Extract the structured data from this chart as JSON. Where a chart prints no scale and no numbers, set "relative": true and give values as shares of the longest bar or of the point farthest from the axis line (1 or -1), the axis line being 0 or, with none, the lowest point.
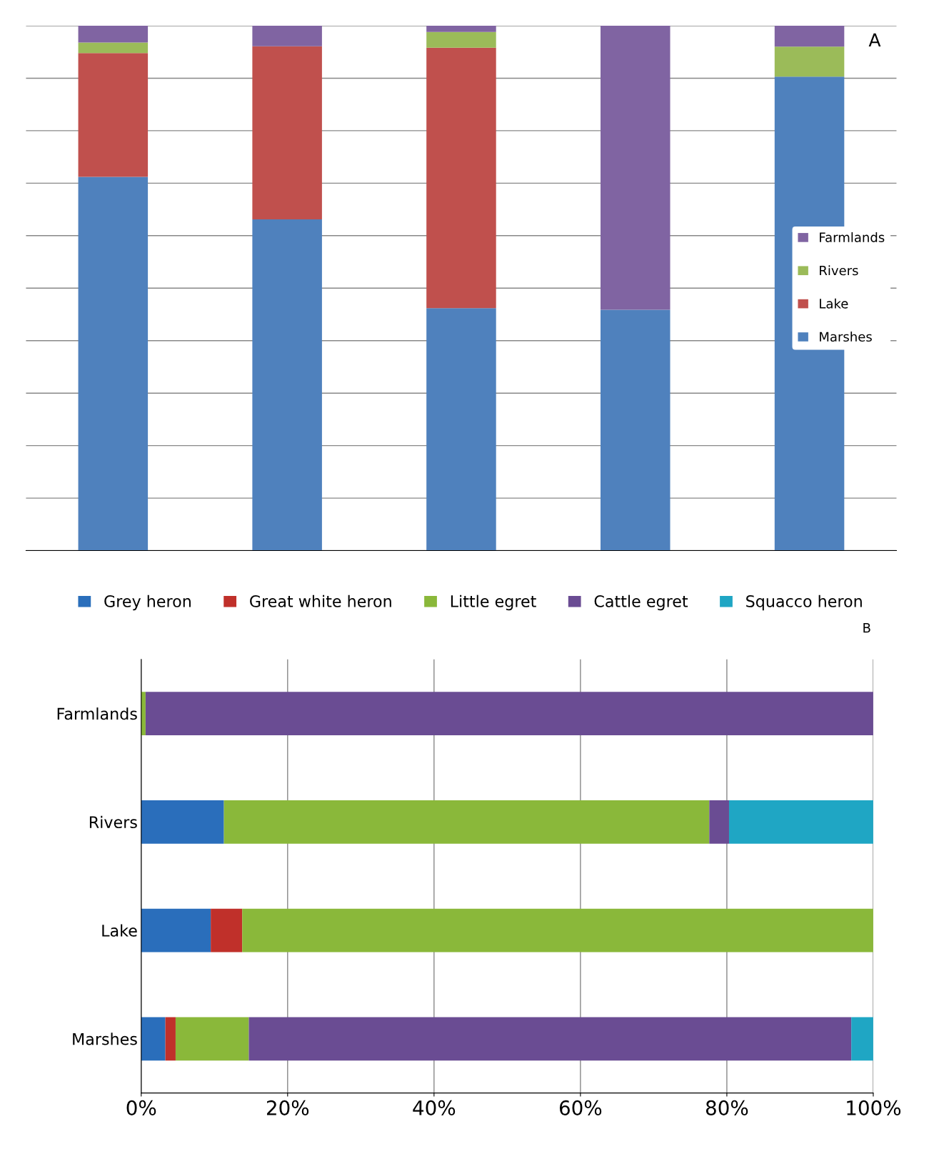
{
  "chart_data": [
    {
      "type": "bar",
      "stacked": true,
      "relative": true,
      "categories": [
        null,
        null,
        null,
        null,
        null
      ],
      "tick_labels": false,
      "grid": "y",
      "legend": "right",
      "series": [
        {
          "name": "Marshes",
          "color": "#4f81bd",
          "values": [
            0.712,
            0.631,
            0.462,
            0.459,
            0.903
          ]
        },
        {
          "name": "Lake",
          "color": "#c0504d",
          "values": [
            0.236,
            0.33,
            0.496,
            0,
            0
          ]
        },
        {
          "name": "Rivers",
          "color": "#9bbb59",
          "values": [
            0.02,
            0,
            0.03,
            0,
            0.057
          ]
        },
        {
          "name": "Farmlands",
          "color": "#8064a2",
          "values": [
            0.032,
            0.039,
            0.012,
            0.541,
            0.04
          ]
        }
      ],
      "annotations": [
        "A"
      ]
    },
    {
      "type": "bar",
      "stacked": true,
      "orientation": "horizontal",
      "categories": [
        "Farmlands",
        "Rivers",
        "Lake",
        "Marshes"
      ],
      "grid": "x",
      "legend": "top",
      "xlim": [
        0,
        100
      ],
      "xticks": [
        {
          "value": 0,
          "label": "0%"
        },
        {
          "value": 20,
          "label": "20%"
        },
        {
          "value": 40,
          "label": "40%"
        },
        {
          "value": 60,
          "label": "60%"
        },
        {
          "value": 80,
          "label": "80%"
        },
        {
          "value": 100,
          "label": "100%"
        }
      ],
      "series": [
        {
          "name": "Grey heron",
          "color": "#2a6ebb",
          "values": [
            0,
            11.3,
            9.5,
            3.3
          ]
        },
        {
          "name": "Great white heron",
          "color": "#c0302a",
          "values": [
            0,
            0,
            4.3,
            1.4
          ]
        },
        {
          "name": "Little egret",
          "color": "#8ab83a",
          "values": [
            0.6,
            66.3,
            86.2,
            10.0
          ]
        },
        {
          "name": "Cattle egret",
          "color": "#6a4c93",
          "values": [
            99.4,
            2.7,
            0,
            82.3
          ]
        },
        {
          "name": "Squacco heron",
          "color": "#1fa6c4",
          "values": [
            0,
            19.7,
            0,
            3.0
          ]
        }
      ],
      "annotations": [
        "B"
      ]
    }
  ]
}
